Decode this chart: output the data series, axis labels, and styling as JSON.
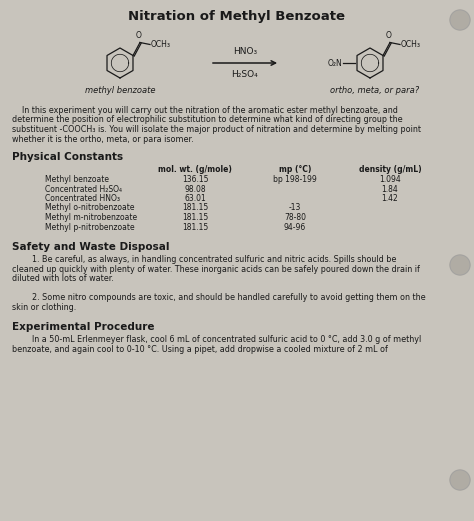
{
  "title": "Nitration of Methyl Benzoate",
  "bg_color": "#c8c4bc",
  "text_color": "#1a1a1a",
  "intro_text": "    In this experiment you will carry out the nitration of the aromatic ester methyl benzoate, and\ndetermine the position of electrophilic substitution to determine what kind of directing group the\nsubstituent -COOCH₃ is. You will isolate the major product of nitration and determine by melting point\nwhether it is the ortho, meta, or para isomer.",
  "section1_title": "Physical Constants",
  "table_headers": [
    "mol. wt. (g/mole)",
    "mp (°C)",
    "density (g/mL)"
  ],
  "table_rows": [
    [
      "Methyl benzoate",
      "136.15",
      "bp 198-199",
      "1.094"
    ],
    [
      "Concentrated H₂SO₄",
      "98.08",
      "",
      "1.84"
    ],
    [
      "Concentrated HNO₃",
      "63.01",
      "",
      "1.42"
    ],
    [
      "Methyl o-nitrobenzoate",
      "181.15",
      "-13",
      ""
    ],
    [
      "Methyl m-nitrobenzoate",
      "181.15",
      "78-80",
      ""
    ],
    [
      "Methyl p-nitrobenzoate",
      "181.15",
      "94-96",
      ""
    ]
  ],
  "section2_title": "Safety and Waste Disposal",
  "safety_lines": [
    "        1. Be careful, as always, in handling concentrated sulfuric and nitric acids. Spills should be",
    "cleaned up quickly with plenty of water. These inorganic acids can be safely poured down the drain if",
    "diluted with lots of water.",
    "",
    "        2. Some nitro compounds are toxic, and should be handled carefully to avoid getting them on the",
    "skin or clothing."
  ],
  "section3_title": "Experimental Procedure",
  "procedure_lines": [
    "        In a 50-mL Erlenmeyer flask, cool 6 mL of concentrated sulfuric acid to 0 °C, add 3.0 g of methyl",
    "benzoate, and again cool to 0-10 °C. Using a pipet, add dropwise a cooled mixture of 2 mL of"
  ],
  "arrow_label_top": "HNO₃",
  "arrow_label_bottom": "H₂SO₄",
  "reactant_label": "methyl benzoate",
  "product_label": "ortho, meta, or para?"
}
